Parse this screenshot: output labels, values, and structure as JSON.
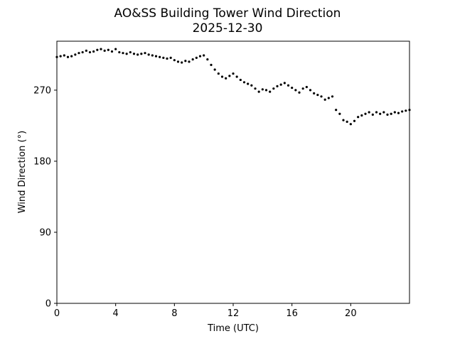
{
  "chart_data": {
    "type": "scatter",
    "title": "AO&SS Building Tower Wind Direction",
    "subtitle": "2025-12-30",
    "xlabel": "Time (UTC)",
    "ylabel": "Wind Direction (°)",
    "xlim": [
      0,
      24
    ],
    "ylim": [
      0,
      332
    ],
    "xticks": [
      0,
      4,
      8,
      12,
      16,
      20
    ],
    "xtick_labels": [
      "0",
      "4",
      "8",
      "12",
      "16",
      "20"
    ],
    "yticks": [
      0,
      90,
      180,
      270
    ],
    "ytick_labels": [
      "0",
      "90",
      "180",
      "270"
    ],
    "grid": false,
    "marker_color": "#000000",
    "series": [
      {
        "x": [
          0.0,
          0.25,
          0.5,
          0.75,
          1.0,
          1.25,
          1.5,
          1.75,
          2.0,
          2.25,
          2.5,
          2.75,
          3.0,
          3.25,
          3.5,
          3.75,
          4.0,
          4.25,
          4.5,
          4.75,
          5.0,
          5.25,
          5.5,
          5.75,
          6.0,
          6.25,
          6.5,
          6.75,
          7.0,
          7.25,
          7.5,
          7.75,
          8.0,
          8.25,
          8.5,
          8.75,
          9.0,
          9.25,
          9.5,
          9.75,
          10.0,
          10.25,
          10.5,
          10.75,
          11.0,
          11.25,
          11.5,
          11.75,
          12.0,
          12.25,
          12.5,
          12.75,
          13.0,
          13.25,
          13.5,
          13.75,
          14.0,
          14.25,
          14.5,
          14.75,
          15.0,
          15.25,
          15.5,
          15.75,
          16.0,
          16.25,
          16.5,
          16.75,
          17.0,
          17.25,
          17.5,
          17.75,
          18.0,
          18.25,
          18.5,
          18.75,
          19.0,
          19.25,
          19.5,
          19.75,
          20.0,
          20.25,
          20.5,
          20.75,
          21.0,
          21.25,
          21.5,
          21.75,
          22.0,
          22.25,
          22.5,
          22.75,
          23.0,
          23.25,
          23.5,
          23.75,
          24.0
        ],
        "values": [
          312,
          313,
          314,
          312,
          313,
          315,
          317,
          318,
          320,
          318,
          319,
          321,
          322,
          320,
          321,
          319,
          322,
          318,
          317,
          316,
          318,
          316,
          315,
          316,
          317,
          315,
          314,
          313,
          312,
          311,
          310,
          311,
          308,
          306,
          305,
          307,
          306,
          309,
          311,
          313,
          314,
          309,
          302,
          296,
          291,
          287,
          285,
          288,
          291,
          287,
          283,
          280,
          278,
          276,
          272,
          268,
          271,
          270,
          268,
          272,
          275,
          277,
          279,
          276,
          273,
          270,
          267,
          272,
          274,
          270,
          266,
          264,
          262,
          258,
          260,
          262,
          245,
          240,
          232,
          230,
          227,
          231,
          236,
          238,
          240,
          242,
          239,
          242,
          240,
          242,
          239,
          240,
          242,
          241,
          243,
          244,
          245
        ]
      }
    ]
  }
}
